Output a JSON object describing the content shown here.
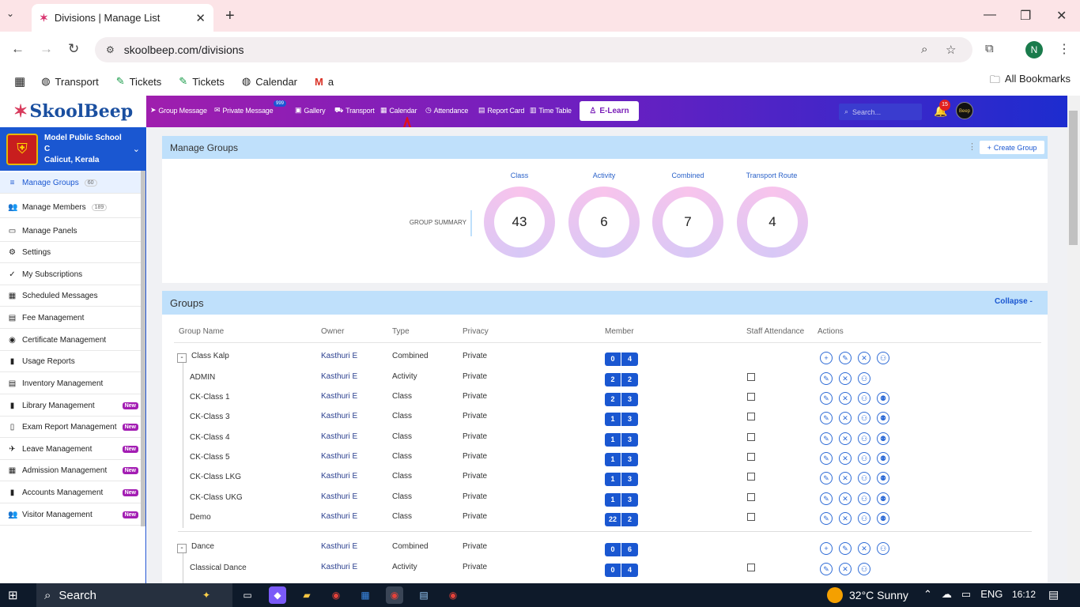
{
  "browser": {
    "tab_title": "Divisions | Manage List",
    "url": "skoolbeep.com/divisions",
    "new_tab": "+",
    "bookmarks": [
      "Transport",
      "Tickets",
      "Tickets",
      "Calendar",
      "a"
    ],
    "all_bookmarks": "All Bookmarks",
    "profile_initial": "N"
  },
  "app": {
    "logo": "SkoolBeep",
    "nav": [
      "Group Message",
      "Private Message",
      "Gallery",
      "Transport",
      "Calendar",
      "Attendance",
      "Report Card",
      "Time Table"
    ],
    "private_message_badge": "999",
    "elearn": "E-Learn",
    "search_placeholder": "Search...",
    "notif_count": "15",
    "avatar_text": "Beep"
  },
  "school": {
    "name": "Model Public School C",
    "location": "Calicut, Kerala"
  },
  "sidebar": [
    {
      "label": "Manage Groups",
      "count": "60",
      "active": true,
      "icon": "≡"
    },
    {
      "label": "Manage Members",
      "count": "189",
      "icon": "👥"
    },
    {
      "label": "Manage Panels",
      "icon": "▭"
    },
    {
      "label": "Settings",
      "icon": "⚙"
    },
    {
      "label": "My Subscriptions",
      "icon": "✓"
    },
    {
      "label": "Scheduled Messages",
      "icon": "▦"
    },
    {
      "label": "Fee Management",
      "icon": "▤"
    },
    {
      "label": "Certificate Management",
      "icon": "◉"
    },
    {
      "label": "Usage Reports",
      "icon": "▮"
    },
    {
      "label": "Inventory Management",
      "icon": "▤"
    },
    {
      "label": "Library Management",
      "new": "New",
      "icon": "▮"
    },
    {
      "label": "Exam Report Management",
      "new": "New",
      "icon": "▯"
    },
    {
      "label": "Leave Management",
      "new": "New",
      "icon": "✈"
    },
    {
      "label": "Admission Management",
      "new": "New",
      "icon": "▦"
    },
    {
      "label": "Accounts Management",
      "new": "New",
      "icon": "▮"
    },
    {
      "label": "Visitor Management",
      "new": "New",
      "icon": "👥"
    }
  ],
  "manage_groups": {
    "title": "Manage Groups",
    "create": "Create Group",
    "summary_label": "GROUP SUMMARY",
    "summary": [
      {
        "label": "Class",
        "value": "43"
      },
      {
        "label": "Activity",
        "value": "6"
      },
      {
        "label": "Combined",
        "value": "7"
      },
      {
        "label": "Transport Route",
        "value": "4"
      }
    ]
  },
  "groups": {
    "title": "Groups",
    "collapse": "Collapse -",
    "headers": [
      "Group Name",
      "Owner",
      "Type",
      "Privacy",
      "Member",
      "Staff Attendance",
      "Actions"
    ],
    "rows": [
      {
        "name": "Class Kalp",
        "owner": "Kasthuri E",
        "type": "Combined",
        "privacy": "Private",
        "m1": "0",
        "m2": "4",
        "parent": true,
        "toggle": "-"
      },
      {
        "name": "ADMIN",
        "owner": "Kasthuri E",
        "type": "Activity",
        "privacy": "Private",
        "m1": "2",
        "m2": "2"
      },
      {
        "name": "CK-Class 1",
        "owner": "Kasthuri E",
        "type": "Class",
        "privacy": "Private",
        "m1": "2",
        "m2": "3"
      },
      {
        "name": "CK-Class 3",
        "owner": "Kasthuri E",
        "type": "Class",
        "privacy": "Private",
        "m1": "1",
        "m2": "3"
      },
      {
        "name": "CK-Class 4",
        "owner": "Kasthuri E",
        "type": "Class",
        "privacy": "Private",
        "m1": "1",
        "m2": "3"
      },
      {
        "name": "CK-Class 5",
        "owner": "Kasthuri E",
        "type": "Class",
        "privacy": "Private",
        "m1": "1",
        "m2": "3"
      },
      {
        "name": "CK-Class LKG",
        "owner": "Kasthuri E",
        "type": "Class",
        "privacy": "Private",
        "m1": "1",
        "m2": "3"
      },
      {
        "name": "CK-Class UKG",
        "owner": "Kasthuri E",
        "type": "Class",
        "privacy": "Private",
        "m1": "1",
        "m2": "3"
      },
      {
        "name": "Demo",
        "owner": "Kasthuri E",
        "type": "Class",
        "privacy": "Private",
        "m1": "22",
        "m2": "2"
      },
      {
        "name": "Dance",
        "owner": "Kasthuri E",
        "type": "Combined",
        "privacy": "Private",
        "m1": "0",
        "m2": "6",
        "parent": true,
        "toggle": "-"
      },
      {
        "name": "Classical Dance",
        "owner": "Kasthuri E",
        "type": "Activity",
        "privacy": "Private",
        "m1": "0",
        "m2": "4"
      }
    ]
  },
  "taskbar": {
    "search": "Search",
    "weather": "32°C  Sunny",
    "lang": "ENG",
    "time": "16:12"
  }
}
